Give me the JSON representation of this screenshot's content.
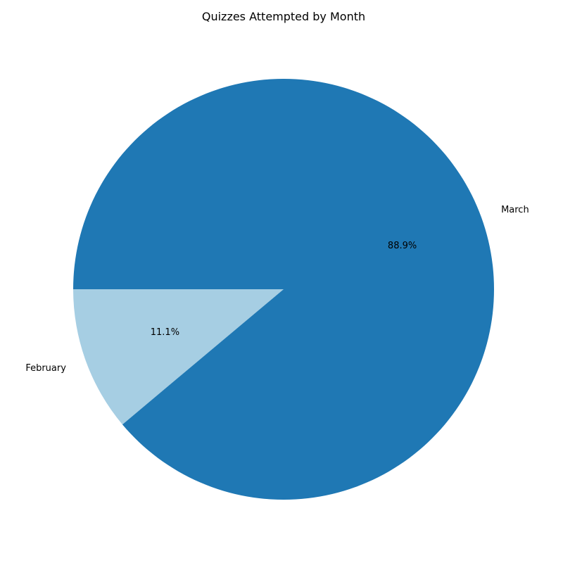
{
  "chart_data": {
    "type": "pie",
    "title": "Quizzes Attempted by Month",
    "categories": [
      "February",
      "March"
    ],
    "values": [
      1,
      8
    ],
    "percent_labels": [
      "11.1%",
      "88.9%"
    ],
    "colors": [
      "#a6cee3",
      "#1f78b4"
    ],
    "start_angle_deg": 180,
    "direction": "counterclockwise",
    "legend": "none"
  }
}
